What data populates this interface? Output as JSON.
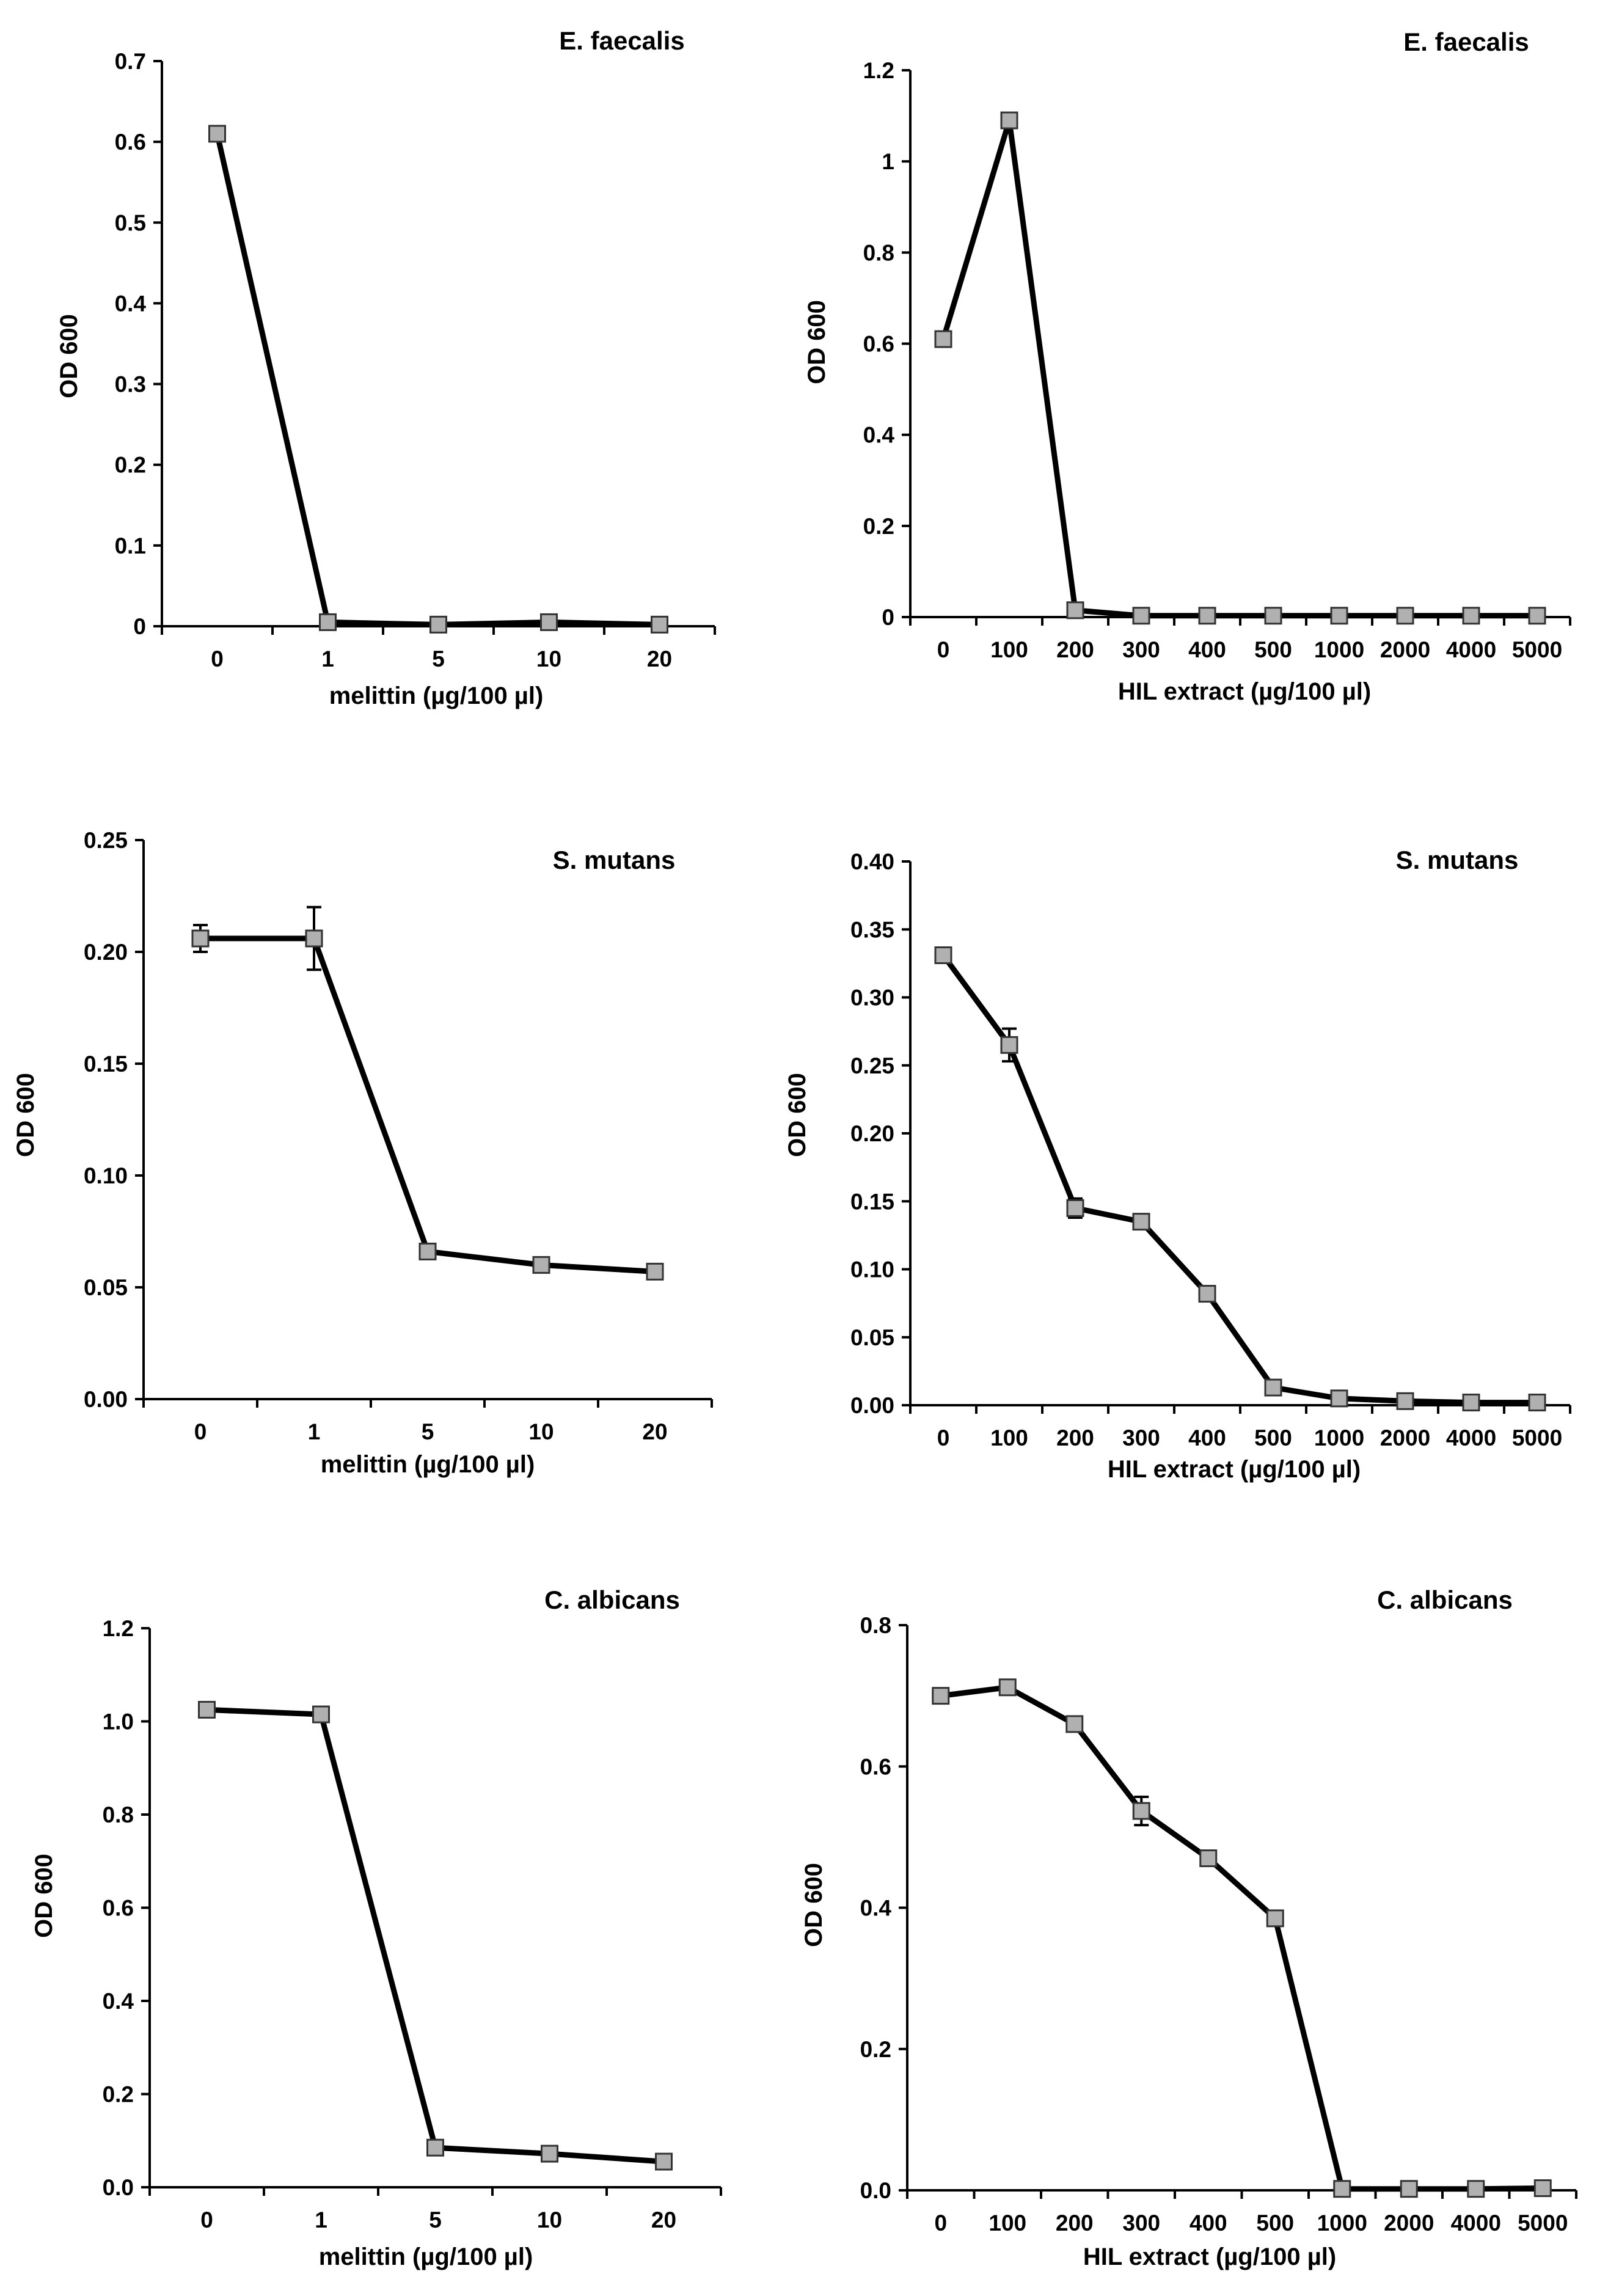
{
  "chart_data": [
    {
      "type": "line",
      "title": "E. faecalis",
      "xlabel": "melittin (µg/100 µl)",
      "ylabel": "OD 600",
      "categories": [
        "0",
        "1",
        "5",
        "10",
        "20"
      ],
      "values": [
        0.61,
        0.005,
        0.002,
        0.005,
        0.002
      ],
      "errors": [
        0,
        0,
        0,
        0,
        0
      ],
      "ylim": [
        0,
        0.7
      ],
      "yticks": [
        0,
        0.1,
        0.2,
        0.3,
        0.4,
        0.5,
        0.6,
        0.7
      ],
      "ytick_labels": [
        "0",
        "0.1",
        "0.2",
        "0.3",
        "0.4",
        "0.5",
        "0.6",
        "0.7"
      ],
      "marker_color": "#b0b0b0",
      "line_color": "#000000"
    },
    {
      "type": "line",
      "title": "E. faecalis",
      "xlabel": "HIL extract (µg/100 µl)",
      "ylabel": "OD 600",
      "categories": [
        "0",
        "100",
        "200",
        "300",
        "400",
        "500",
        "1000",
        "2000",
        "4000",
        "5000"
      ],
      "values": [
        0.61,
        1.09,
        0.015,
        0.003,
        0.003,
        0.003,
        0.003,
        0.003,
        0.003,
        0.003
      ],
      "errors": [
        0,
        0,
        0,
        0,
        0,
        0,
        0,
        0,
        0,
        0
      ],
      "ylim": [
        0,
        1.2
      ],
      "yticks": [
        0,
        0.2,
        0.4,
        0.6,
        0.8,
        1.0,
        1.2
      ],
      "ytick_labels": [
        "0",
        "0.2",
        "0.4",
        "0.6",
        "0.8",
        "1",
        "1.2"
      ],
      "marker_color": "#b0b0b0",
      "line_color": "#000000"
    },
    {
      "type": "line",
      "title": "S. mutans",
      "xlabel": "melittin (µg/100 µl)",
      "ylabel": "OD 600",
      "categories": [
        "0",
        "1",
        "5",
        "10",
        "20"
      ],
      "values": [
        0.206,
        0.206,
        0.066,
        0.06,
        0.057
      ],
      "errors": [
        0.006,
        0.014,
        0,
        0,
        0
      ],
      "ylim": [
        0,
        0.25
      ],
      "yticks": [
        0,
        0.05,
        0.1,
        0.15,
        0.2,
        0.25
      ],
      "ytick_labels": [
        "0.00",
        "0.05",
        "0.10",
        "0.15",
        "0.20",
        "0.25"
      ],
      "marker_color": "#b0b0b0",
      "line_color": "#000000"
    },
    {
      "type": "line",
      "title": "S. mutans",
      "xlabel": "HIL extract (µg/100 µl)",
      "ylabel": "OD 600",
      "categories": [
        "0",
        "100",
        "200",
        "300",
        "400",
        "500",
        "1000",
        "2000",
        "4000",
        "5000"
      ],
      "values": [
        0.331,
        0.265,
        0.145,
        0.135,
        0.082,
        0.013,
        0.005,
        0.003,
        0.002,
        0.002
      ],
      "errors": [
        0,
        0.012,
        0.007,
        0,
        0,
        0,
        0,
        0,
        0.004,
        0.005
      ],
      "ylim": [
        0,
        0.4
      ],
      "yticks": [
        0,
        0.05,
        0.1,
        0.15,
        0.2,
        0.25,
        0.3,
        0.35,
        0.4
      ],
      "ytick_labels": [
        "0.00",
        "0.05",
        "0.10",
        "0.15",
        "0.20",
        "0.25",
        "0.30",
        "0.35",
        "0.40"
      ],
      "marker_color": "#b0b0b0",
      "line_color": "#000000"
    },
    {
      "type": "line",
      "title": "C. albicans",
      "xlabel": "melittin (µg/100 µl)",
      "ylabel": "OD 600",
      "categories": [
        "0",
        "1",
        "5",
        "10",
        "20"
      ],
      "values": [
        1.025,
        1.015,
        0.085,
        0.072,
        0.055
      ],
      "errors": [
        0,
        0,
        0,
        0,
        0
      ],
      "ylim": [
        0,
        1.2
      ],
      "yticks": [
        0,
        0.2,
        0.4,
        0.6,
        0.8,
        1.0,
        1.2
      ],
      "ytick_labels": [
        "0.0",
        "0.2",
        "0.4",
        "0.6",
        "0.8",
        "1.0",
        "1.2"
      ],
      "marker_color": "#b0b0b0",
      "line_color": "#000000"
    },
    {
      "type": "line",
      "title": "C. albicans",
      "xlabel": "HIL extract (µg/100 µl)",
      "ylabel": "OD 600",
      "categories": [
        "0",
        "100",
        "200",
        "300",
        "400",
        "500",
        "1000",
        "2000",
        "4000",
        "5000"
      ],
      "values": [
        0.7,
        0.712,
        0.66,
        0.537,
        0.47,
        0.385,
        0.002,
        0.002,
        0.002,
        0.003
      ],
      "errors": [
        0,
        0,
        0,
        0.02,
        0,
        0.008,
        0,
        0,
        0,
        0.005
      ],
      "ylim": [
        0,
        0.8
      ],
      "yticks": [
        0,
        0.2,
        0.4,
        0.6,
        0.8
      ],
      "ytick_labels": [
        "0.0",
        "0.2",
        "0.4",
        "0.6",
        "0.8"
      ],
      "marker_color": "#b0b0b0",
      "line_color": "#000000"
    }
  ]
}
